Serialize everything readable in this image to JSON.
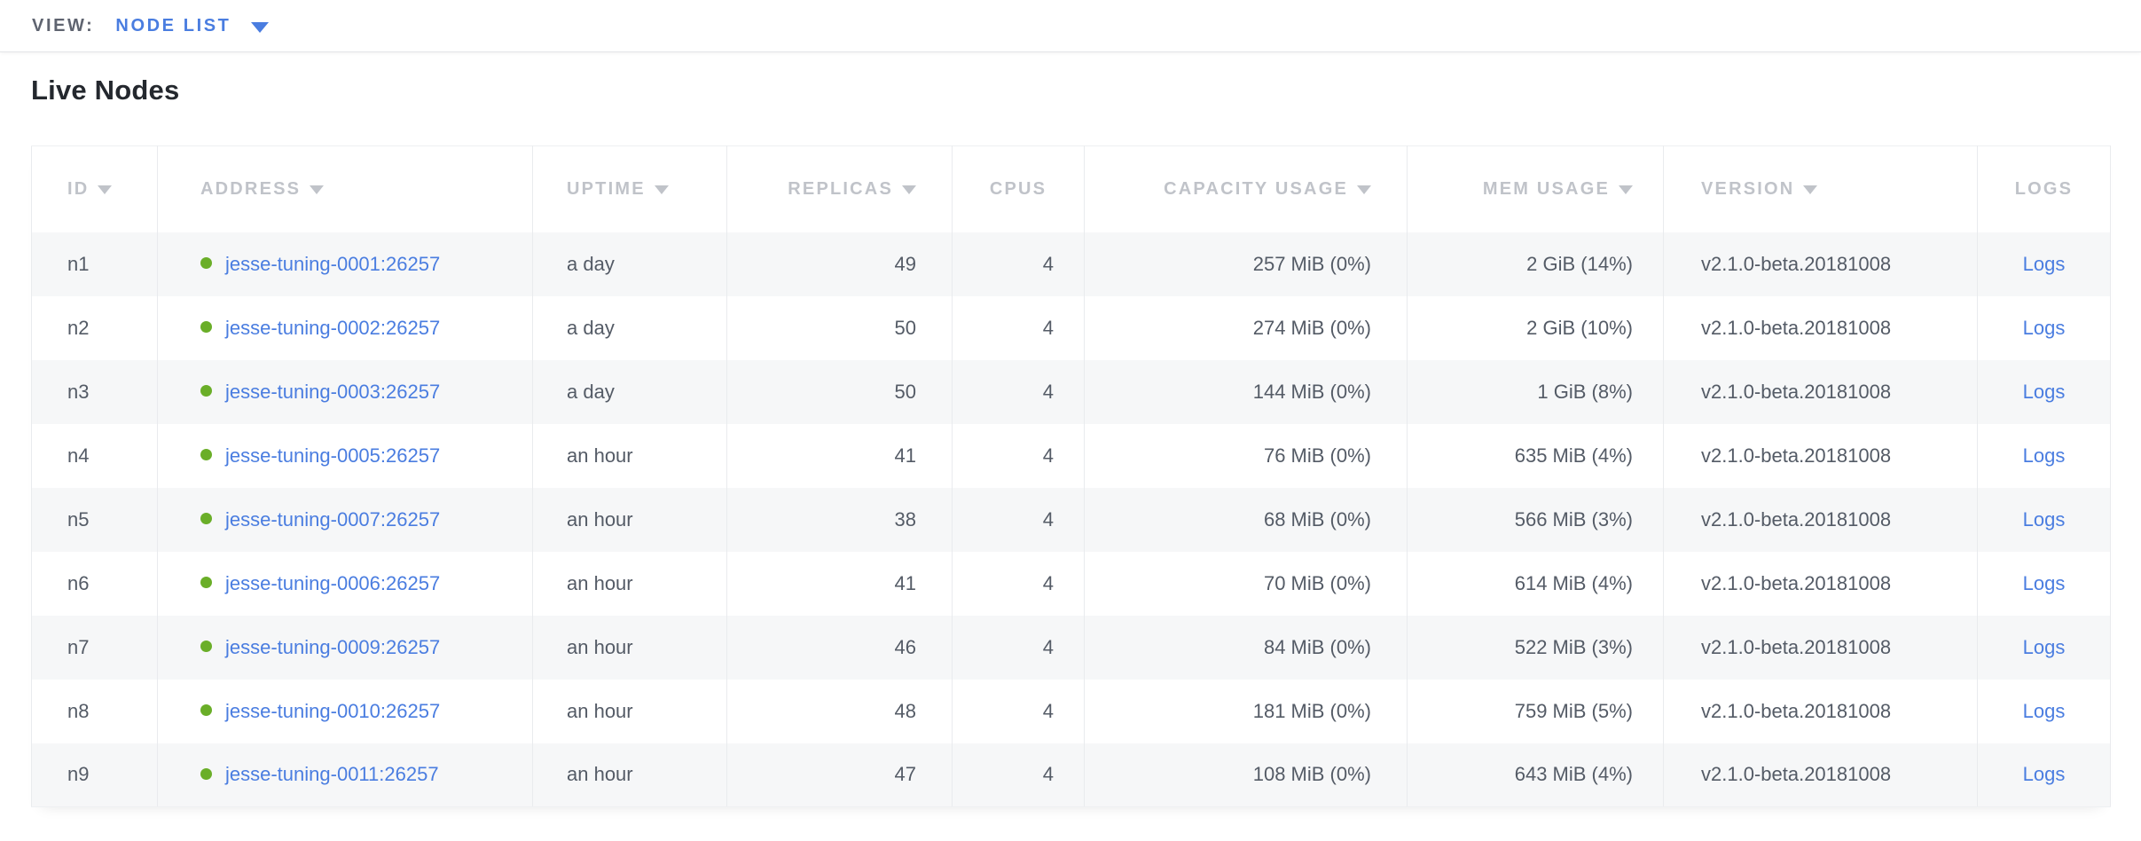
{
  "topbar": {
    "view_label": "VIEW:",
    "view_value": "NODE LIST"
  },
  "page": {
    "title": "Live Nodes"
  },
  "colors": {
    "accent_blue": "#4a7de0",
    "live_green": "#6aae28"
  },
  "table": {
    "columns": [
      {
        "key": "id",
        "label": "ID",
        "sortable": true,
        "align": "left"
      },
      {
        "key": "address",
        "label": "ADDRESS",
        "sortable": true,
        "align": "left"
      },
      {
        "key": "uptime",
        "label": "UPTIME",
        "sortable": true,
        "align": "left"
      },
      {
        "key": "replicas",
        "label": "REPLICAS",
        "sortable": true,
        "align": "right"
      },
      {
        "key": "cpus",
        "label": "CPUS",
        "sortable": false,
        "align": "right",
        "header_align": "center"
      },
      {
        "key": "capacity",
        "label": "CAPACITY USAGE",
        "sortable": true,
        "align": "right"
      },
      {
        "key": "mem",
        "label": "MEM USAGE",
        "sortable": true,
        "align": "right"
      },
      {
        "key": "version",
        "label": "VERSION",
        "sortable": true,
        "align": "left"
      },
      {
        "key": "logs",
        "label": "LOGS",
        "sortable": false,
        "align": "center"
      }
    ],
    "rows": [
      {
        "id": "n1",
        "status": "live",
        "address": "jesse-tuning-0001:26257",
        "uptime": "a day",
        "replicas": "49",
        "cpus": "4",
        "capacity": "257 MiB (0%)",
        "mem": "2 GiB (14%)",
        "version": "v2.1.0-beta.20181008",
        "logs": "Logs"
      },
      {
        "id": "n2",
        "status": "live",
        "address": "jesse-tuning-0002:26257",
        "uptime": "a day",
        "replicas": "50",
        "cpus": "4",
        "capacity": "274 MiB (0%)",
        "mem": "2 GiB (10%)",
        "version": "v2.1.0-beta.20181008",
        "logs": "Logs"
      },
      {
        "id": "n3",
        "status": "live",
        "address": "jesse-tuning-0003:26257",
        "uptime": "a day",
        "replicas": "50",
        "cpus": "4",
        "capacity": "144 MiB (0%)",
        "mem": "1 GiB (8%)",
        "version": "v2.1.0-beta.20181008",
        "logs": "Logs"
      },
      {
        "id": "n4",
        "status": "live",
        "address": "jesse-tuning-0005:26257",
        "uptime": "an hour",
        "replicas": "41",
        "cpus": "4",
        "capacity": "76 MiB (0%)",
        "mem": "635 MiB (4%)",
        "version": "v2.1.0-beta.20181008",
        "logs": "Logs"
      },
      {
        "id": "n5",
        "status": "live",
        "address": "jesse-tuning-0007:26257",
        "uptime": "an hour",
        "replicas": "38",
        "cpus": "4",
        "capacity": "68 MiB (0%)",
        "mem": "566 MiB (3%)",
        "version": "v2.1.0-beta.20181008",
        "logs": "Logs"
      },
      {
        "id": "n6",
        "status": "live",
        "address": "jesse-tuning-0006:26257",
        "uptime": "an hour",
        "replicas": "41",
        "cpus": "4",
        "capacity": "70 MiB (0%)",
        "mem": "614 MiB (4%)",
        "version": "v2.1.0-beta.20181008",
        "logs": "Logs"
      },
      {
        "id": "n7",
        "status": "live",
        "address": "jesse-tuning-0009:26257",
        "uptime": "an hour",
        "replicas": "46",
        "cpus": "4",
        "capacity": "84 MiB (0%)",
        "mem": "522 MiB (3%)",
        "version": "v2.1.0-beta.20181008",
        "logs": "Logs"
      },
      {
        "id": "n8",
        "status": "live",
        "address": "jesse-tuning-0010:26257",
        "uptime": "an hour",
        "replicas": "48",
        "cpus": "4",
        "capacity": "181 MiB (0%)",
        "mem": "759 MiB (5%)",
        "version": "v2.1.0-beta.20181008",
        "logs": "Logs"
      },
      {
        "id": "n9",
        "status": "live",
        "address": "jesse-tuning-0011:26257",
        "uptime": "an hour",
        "replicas": "47",
        "cpus": "4",
        "capacity": "108 MiB (0%)",
        "mem": "643 MiB (4%)",
        "version": "v2.1.0-beta.20181008",
        "logs": "Logs"
      }
    ]
  }
}
